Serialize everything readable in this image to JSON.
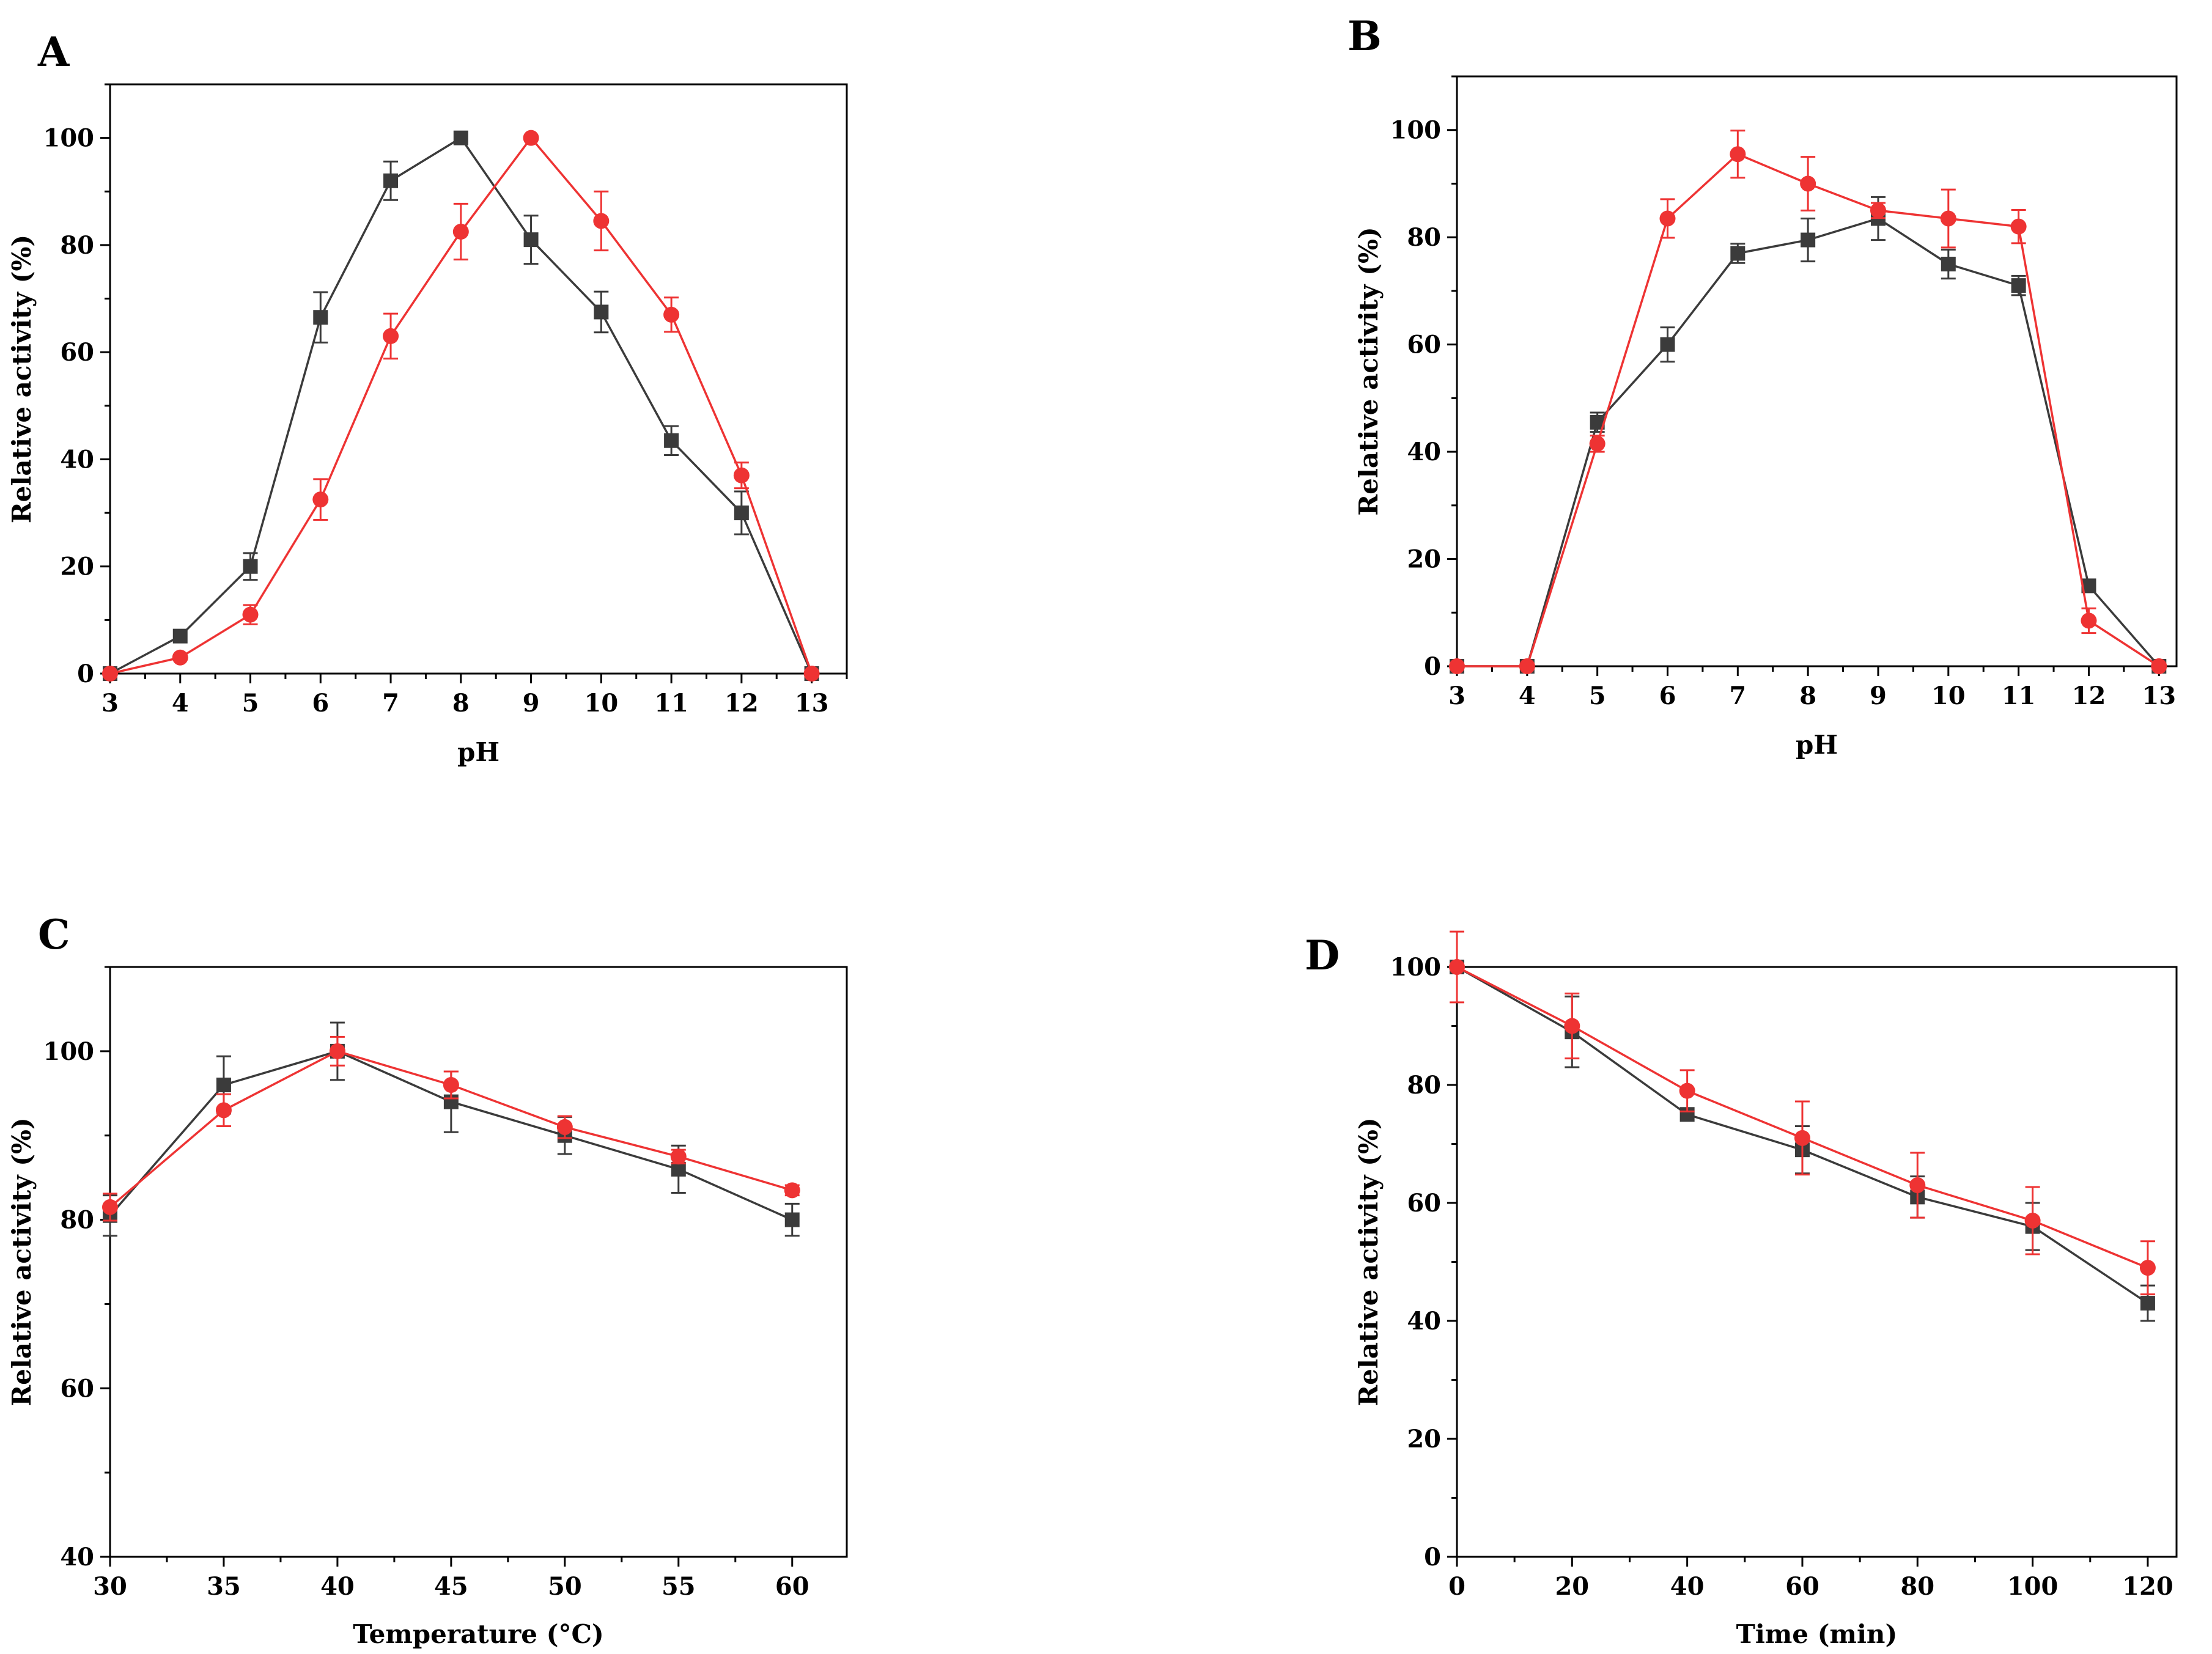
{
  "figure": {
    "colors": {
      "series_black": "#3b3b3b",
      "series_red": "#ee3333",
      "axis": "#000000"
    }
  },
  "chart_data": [
    {
      "panel": "A",
      "type": "line",
      "title": "",
      "xlabel": "pH",
      "ylabel": "Relative activity (%)",
      "xlim": [
        3,
        13.5
      ],
      "ylim": [
        0,
        110
      ],
      "xticks": [
        3,
        4,
        5,
        6,
        7,
        8,
        9,
        10,
        11,
        12,
        13
      ],
      "yticks": [
        0,
        20,
        40,
        60,
        80,
        100
      ],
      "grid": false,
      "series": [
        {
          "name": "black squares",
          "marker": "square",
          "color": "#3b3b3b",
          "x": [
            3,
            4,
            5,
            6,
            7,
            8,
            9,
            10,
            11,
            12,
            13
          ],
          "y": [
            0,
            7,
            20,
            66.5,
            92,
            100,
            81,
            67.5,
            43.5,
            30,
            0
          ],
          "err": [
            0,
            0,
            2.5,
            4.7,
            3.6,
            0,
            4.5,
            3.8,
            2.7,
            4,
            0
          ]
        },
        {
          "name": "red circles",
          "marker": "circle",
          "color": "#ee3333",
          "x": [
            3,
            4,
            5,
            6,
            7,
            8,
            9,
            10,
            11,
            12,
            13
          ],
          "y": [
            0,
            3,
            11,
            32.5,
            63,
            82.5,
            100,
            84.5,
            67,
            37,
            0
          ],
          "err": [
            0,
            0,
            1.8,
            3.8,
            4.2,
            5.2,
            0,
            5.5,
            3.2,
            2.4,
            0
          ]
        }
      ]
    },
    {
      "panel": "B",
      "type": "line",
      "title": "",
      "xlabel": "pH",
      "ylabel": "Relative activity (%)",
      "xlim": [
        3,
        13.25
      ],
      "ylim": [
        0,
        110
      ],
      "xticks": [
        3,
        4,
        5,
        6,
        7,
        8,
        9,
        10,
        11,
        12,
        13
      ],
      "yticks": [
        0,
        20,
        40,
        60,
        80,
        100
      ],
      "grid": false,
      "series": [
        {
          "name": "black squares",
          "marker": "square",
          "color": "#3b3b3b",
          "x": [
            3,
            4,
            5,
            6,
            7,
            8,
            9,
            10,
            11,
            12,
            13
          ],
          "y": [
            0,
            0,
            45.5,
            60,
            77,
            79.5,
            83.5,
            75,
            71,
            15,
            0
          ],
          "err": [
            0,
            0,
            1.8,
            3.2,
            1.8,
            4,
            4,
            2.7,
            1.8,
            0,
            0
          ]
        },
        {
          "name": "red circles",
          "marker": "circle",
          "color": "#ee3333",
          "x": [
            3,
            4,
            5,
            6,
            7,
            8,
            9,
            10,
            11,
            12,
            13
          ],
          "y": [
            0,
            0,
            41.5,
            83.5,
            95.5,
            90,
            85,
            83.5,
            82,
            8.5,
            0
          ],
          "err": [
            0,
            0,
            1.5,
            3.6,
            4.4,
            5,
            1.4,
            5.4,
            3.1,
            2.3,
            0
          ]
        }
      ]
    },
    {
      "panel": "C",
      "type": "line",
      "title": "",
      "xlabel": "Temperature (°C)",
      "ylabel": "Relative activity (%)",
      "xlim": [
        30,
        62.4
      ],
      "ylim": [
        40,
        110
      ],
      "xticks": [
        30,
        35,
        40,
        45,
        50,
        55,
        60
      ],
      "yticks": [
        40,
        60,
        80,
        100
      ],
      "grid": false,
      "series": [
        {
          "name": "black squares",
          "marker": "square",
          "color": "#3b3b3b",
          "x": [
            30,
            35,
            40,
            45,
            50,
            55,
            60
          ],
          "y": [
            80.5,
            96,
            100,
            94,
            90,
            86,
            80
          ],
          "err": [
            2.4,
            3.4,
            3.4,
            3.6,
            2.2,
            2.8,
            1.9
          ]
        },
        {
          "name": "red circles",
          "marker": "circle",
          "color": "#ee3333",
          "x": [
            30,
            35,
            40,
            45,
            50,
            55,
            60
          ],
          "y": [
            81.5,
            93,
            100,
            96,
            91,
            87.5,
            83.5
          ],
          "err": [
            1.6,
            1.9,
            1.7,
            1.6,
            1.3,
            0.8,
            0.6
          ]
        }
      ]
    },
    {
      "panel": "D",
      "type": "line",
      "title": "",
      "xlabel": "Time (min)",
      "ylabel": "Relative activity (%)",
      "xlim": [
        0,
        125
      ],
      "ylim": [
        0,
        100
      ],
      "xticks": [
        0,
        20,
        40,
        60,
        80,
        100,
        120
      ],
      "yticks": [
        0,
        20,
        40,
        60,
        80,
        100
      ],
      "grid": false,
      "series": [
        {
          "name": "black squares",
          "marker": "square",
          "color": "#3b3b3b",
          "x": [
            0,
            20,
            40,
            60,
            80,
            100,
            120
          ],
          "y": [
            100,
            89,
            75,
            69,
            61,
            56,
            43
          ],
          "err": [
            0,
            6,
            0,
            4,
            3.5,
            4,
            3
          ]
        },
        {
          "name": "red circles",
          "marker": "circle",
          "color": "#ee3333",
          "x": [
            0,
            20,
            40,
            60,
            80,
            100,
            120
          ],
          "y": [
            100,
            90,
            79,
            71,
            63,
            57,
            49
          ],
          "err": [
            6,
            5.5,
            3.5,
            6.2,
            5.5,
            5.7,
            4.5
          ]
        }
      ]
    }
  ]
}
